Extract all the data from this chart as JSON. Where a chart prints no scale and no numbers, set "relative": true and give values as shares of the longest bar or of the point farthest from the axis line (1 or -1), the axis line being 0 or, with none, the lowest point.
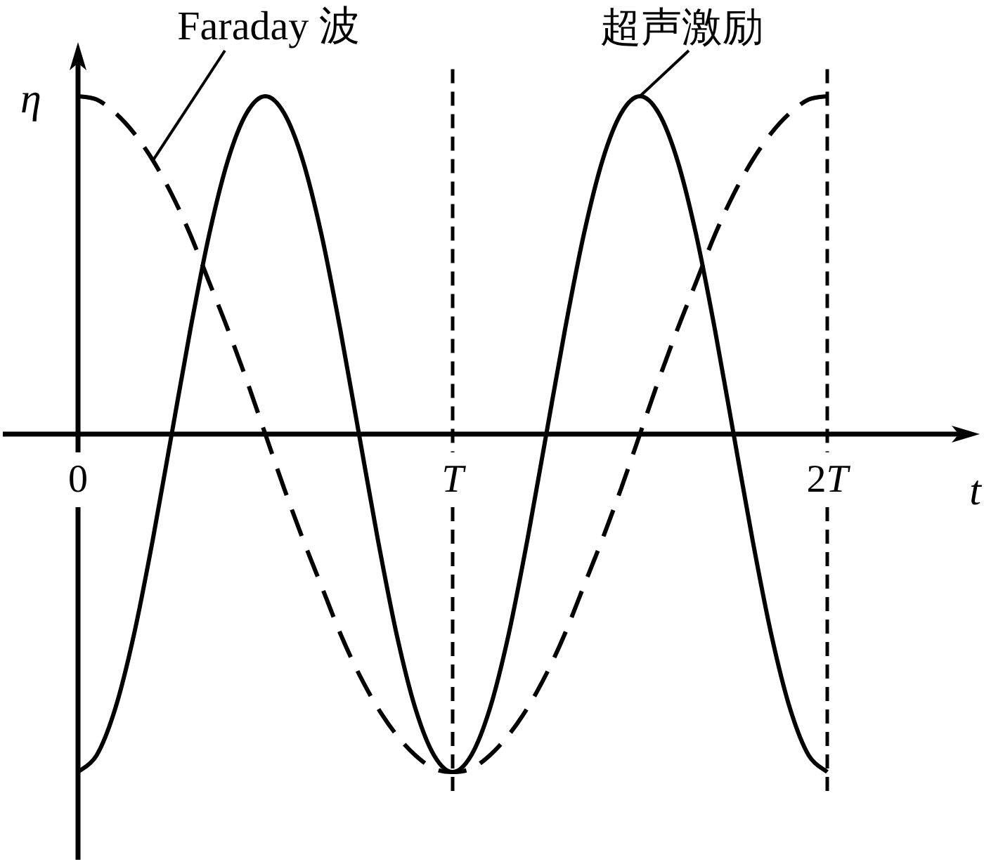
{
  "chart_data": {
    "type": "line",
    "relative": true,
    "xlabel": "t",
    "ylabel": "η",
    "grid": "x",
    "categories": [
      "0",
      null,
      null,
      null,
      null,
      null,
      null,
      null,
      null,
      null,
      null,
      null,
      null,
      null,
      null,
      null,
      null,
      null,
      null,
      null,
      "T",
      null,
      null,
      null,
      null,
      null,
      null,
      null,
      null,
      null,
      null,
      null,
      null,
      null,
      null,
      null,
      null,
      null,
      null,
      null,
      "2T"
    ],
    "series": [
      {
        "name": "Faraday 波",
        "color": "#000000",
        "line_style": "dashed",
        "values": [
          1,
          0.99,
          0.95,
          0.89,
          0.81,
          0.71,
          0.59,
          0.45,
          0.31,
          0.16,
          0,
          -0.16,
          -0.31,
          -0.45,
          -0.59,
          -0.71,
          -0.81,
          -0.89,
          -0.95,
          -0.99,
          -1,
          -0.99,
          -0.95,
          -0.89,
          -0.81,
          -0.71,
          -0.59,
          -0.45,
          -0.31,
          -0.16,
          0,
          0.16,
          0.31,
          0.45,
          0.59,
          0.71,
          0.81,
          0.89,
          0.95,
          0.99,
          1
        ]
      },
      {
        "name": "超声激励",
        "color": "#000000",
        "line_style": "solid",
        "values": [
          -1,
          -0.95,
          -0.81,
          -0.59,
          -0.31,
          0,
          0.31,
          0.59,
          0.81,
          0.95,
          1,
          0.95,
          0.81,
          0.59,
          0.31,
          0,
          -0.31,
          -0.59,
          -0.81,
          -0.95,
          -1,
          -0.95,
          -0.81,
          -0.59,
          -0.31,
          0,
          0.31,
          0.59,
          0.81,
          0.95,
          1,
          0.95,
          0.81,
          0.59,
          0.31,
          0,
          -0.31,
          -0.59,
          -0.81,
          -0.95,
          -1
        ]
      }
    ]
  }
}
